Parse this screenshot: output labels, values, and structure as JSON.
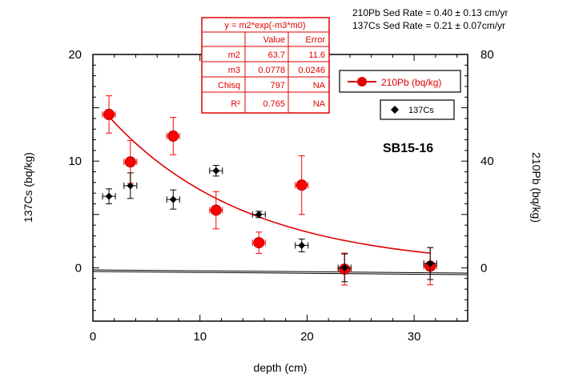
{
  "chart_data": {
    "type": "scatter",
    "sample_id": "SB15-16",
    "annotations": [
      "210Pb Sed Rate = 0.40 ± 0.13 cm/yr",
      "137Cs Sed Rate = 0.21 ± 0.07cm/yr"
    ],
    "xlabel": "depth (cm)",
    "ylabel_left": "137Cs (bq/kg)",
    "ylabel_right": "210Pb (bq/kg)",
    "xlim": [
      0,
      35
    ],
    "ylim_left": [
      -5,
      20
    ],
    "ylim_right": [
      -20,
      80
    ],
    "x_ticks": [
      0,
      10,
      20,
      30
    ],
    "y_left_ticks": [
      0,
      10,
      20
    ],
    "y_right_ticks": [
      0,
      40,
      80
    ],
    "grid": false,
    "legend_entries": [
      "210Pb (bq/kg)",
      "137Cs"
    ],
    "fit_table": {
      "title": "y = m2*exp(-m3*m0)",
      "headers": [
        "",
        "Value",
        "Error"
      ],
      "rows": [
        [
          "m2",
          "63.7",
          "11.6"
        ],
        [
          "m3",
          "0.0778",
          "0.0246"
        ],
        [
          "Chisq",
          "797",
          "NA"
        ],
        [
          "R²",
          "0.765",
          "NA"
        ]
      ]
    },
    "fit_params": {
      "m2": 63.7,
      "m3": 0.0778,
      "x_range": [
        1.5,
        31.5
      ]
    },
    "series": [
      {
        "name": "210Pb (bq/kg)",
        "axis": "right",
        "color": "#ff0000",
        "marker": "circle",
        "points": [
          {
            "x": 1.5,
            "y": 57.5,
            "xerr": 0.6,
            "yerr": 7
          },
          {
            "x": 3.5,
            "y": 39.7,
            "xerr": 0.6,
            "yerr": 8
          },
          {
            "x": 7.5,
            "y": 49.4,
            "xerr": 0.6,
            "yerr": 7
          },
          {
            "x": 11.5,
            "y": 21.6,
            "xerr": 0.6,
            "yerr": 7
          },
          {
            "x": 15.5,
            "y": 9.4,
            "xerr": 0.6,
            "yerr": 4
          },
          {
            "x": 19.5,
            "y": 31,
            "xerr": 0.6,
            "yerr": 11
          },
          {
            "x": 23.5,
            "y": -0.5,
            "xerr": 0.6,
            "yerr": 6
          },
          {
            "x": 31.5,
            "y": 0.6,
            "xerr": 0.6,
            "yerr": 7
          }
        ]
      },
      {
        "name": "137Cs",
        "axis": "left",
        "color": "#000000",
        "marker": "diamond",
        "points": [
          {
            "x": 1.5,
            "y": 6.7,
            "xerr": 0.6,
            "yerr": 0.7
          },
          {
            "x": 3.5,
            "y": 7.7,
            "xerr": 0.6,
            "yerr": 1.2
          },
          {
            "x": 7.5,
            "y": 6.4,
            "xerr": 0.6,
            "yerr": 0.9
          },
          {
            "x": 11.5,
            "y": 9.1,
            "xerr": 0.6,
            "yerr": 0.5
          },
          {
            "x": 15.5,
            "y": 5.0,
            "xerr": 0.6,
            "yerr": 0.3
          },
          {
            "x": 19.5,
            "y": 2.1,
            "xerr": 0.6,
            "yerr": 0.6
          },
          {
            "x": 23.5,
            "y": 0.0,
            "xerr": 0.6,
            "yerr": 1.3
          },
          {
            "x": 31.5,
            "y": 0.4,
            "xerr": 0.6,
            "yerr": 1.5
          }
        ]
      }
    ]
  }
}
